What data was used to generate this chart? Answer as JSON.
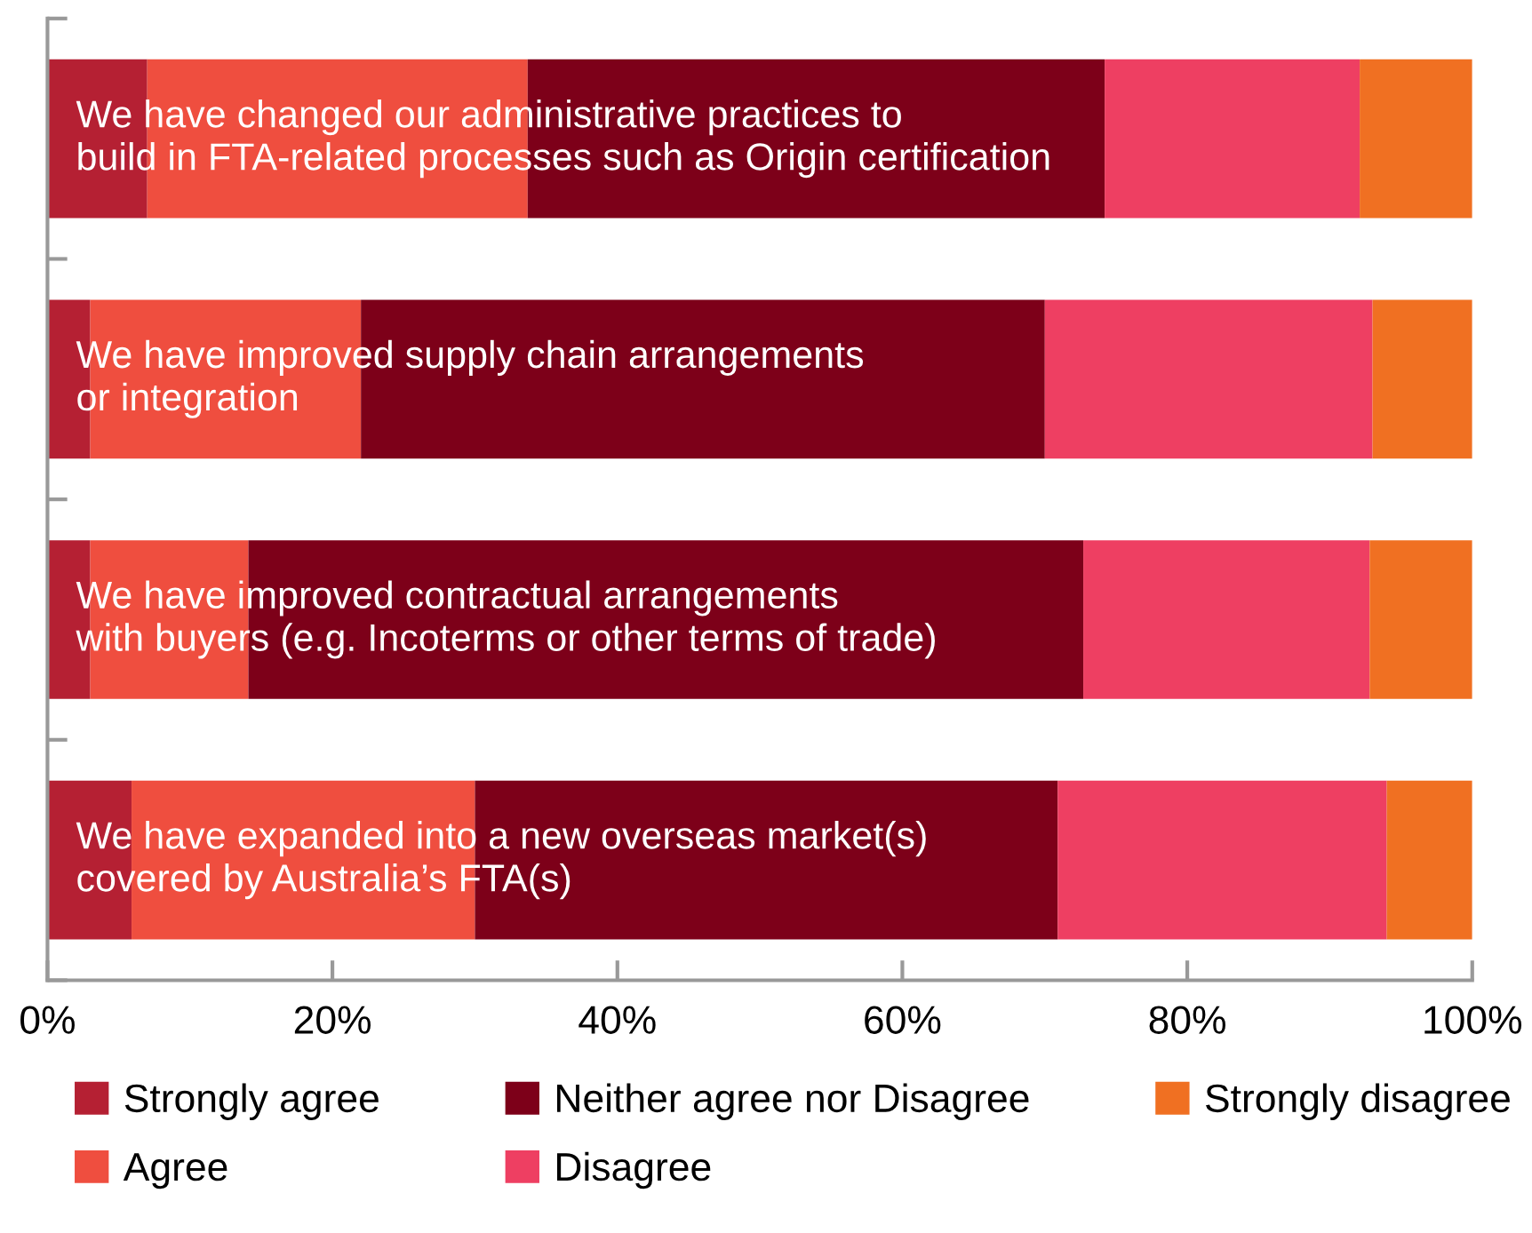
{
  "chart_data": {
    "type": "bar",
    "orientation": "horizontal",
    "stacked": true,
    "categories": [
      "We have changed our administrative practices to\nbuild in FTA-related processes such as Origin certification",
      "We have improved supply chain arrangements\nor integration",
      "We have improved contractual arrangements\nwith buyers (e.g. Incoterms or other terms of trade)",
      "We have expanded into a new overseas market(s)\ncovered by Australia’s FTA(s)"
    ],
    "series": [
      {
        "name": "Strongly agree",
        "color": "#b52033",
        "values": [
          7,
          3,
          3,
          5.9
        ]
      },
      {
        "name": "Agree",
        "color": "#ef4e3f",
        "values": [
          26.7,
          19,
          11.1,
          24.1
        ]
      },
      {
        "name": "Neither agree nor Disagree",
        "color": "#7d0019",
        "values": [
          40.5,
          48,
          58.6,
          40.9
        ]
      },
      {
        "name": "Disagree",
        "color": "#ee3f62",
        "values": [
          17.9,
          23,
          20.1,
          23.1
        ]
      },
      {
        "name": "Strongly disagree",
        "color": "#f07022",
        "values": [
          7.9,
          7,
          7.2,
          6.0
        ]
      }
    ],
    "xlim": [
      0,
      100
    ],
    "xticks": [
      {
        "value": 0,
        "label": "0%"
      },
      {
        "value": 20,
        "label": "20%"
      },
      {
        "value": 40,
        "label": "40%"
      },
      {
        "value": 60,
        "label": "60%"
      },
      {
        "value": 80,
        "label": "80%"
      },
      {
        "value": 100,
        "label": "100%"
      }
    ],
    "grid": false,
    "legend": "bottom"
  }
}
